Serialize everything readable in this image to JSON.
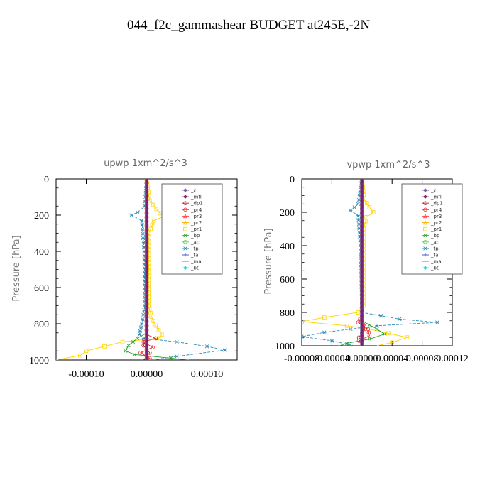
{
  "figure": {
    "title": "044_f2c_gammashear  BUDGET at245E,-2N"
  },
  "legend_entries": [
    {
      "name": "_cl",
      "color": "#7a5c99",
      "marker": "diamond"
    },
    {
      "name": "_mfl",
      "color": "#8b1a5a",
      "marker": "diamond"
    },
    {
      "name": "_dp1",
      "color": "#b22222",
      "marker": "circle"
    },
    {
      "name": "_pr4",
      "color": "#e8262e",
      "marker": "circle"
    },
    {
      "name": "_pr3",
      "color": "#ff4040",
      "marker": "triangle"
    },
    {
      "name": "_pr2",
      "color": "#ffb000",
      "marker": "triangle"
    },
    {
      "name": "_pr1",
      "color": "#ffd400",
      "marker": "square"
    },
    {
      "name": "_bp",
      "color": "#22a022",
      "marker": "x"
    },
    {
      "name": "_ac",
      "color": "#55cc55",
      "marker": "circle"
    },
    {
      "name": "_tp",
      "color": "#2a8ab8",
      "marker": "star"
    },
    {
      "name": "_ta",
      "color": "#3050c8",
      "marker": "plus"
    },
    {
      "name": "_ma",
      "color": "#3ab0e0",
      "marker": "dash"
    },
    {
      "name": "_bt",
      "color": "#00e5ee",
      "marker": "diamond"
    }
  ],
  "chart_data": [
    {
      "type": "line",
      "title": "upwp   1xm^2/s^3",
      "ylabel": "Pressure [hPa]",
      "xlim": [
        -0.00015,
        0.00015
      ],
      "ylim": [
        1000,
        0
      ],
      "xticks": [
        -0.0001,
        0,
        0.0001
      ],
      "xtick_labels": [
        "-0.00010",
        "0.00000",
        "0.00010"
      ],
      "yticks": [
        0,
        200,
        400,
        600,
        800,
        1000
      ],
      "ytick_labels": [
        "0",
        "200",
        "400",
        "600",
        "800",
        "1000"
      ],
      "legend_position": "top-right",
      "series": [
        {
          "name": "_pr1",
          "points": [
            [
              0,
              0
            ],
            [
              5e-06,
              120
            ],
            [
              2.2e-05,
              190
            ],
            [
              3e-05,
              205
            ],
            [
              1.2e-05,
              230
            ],
            [
              4e-06,
              300
            ],
            [
              3e-06,
              700
            ],
            [
              8e-06,
              760
            ],
            [
              1.5e-05,
              810
            ],
            [
              2.5e-05,
              860
            ],
            [
              2e-05,
              880
            ],
            [
              -4e-05,
              900
            ],
            [
              -0.0001,
              950
            ],
            [
              -0.00011,
              975
            ],
            [
              -0.00015,
              1000
            ]
          ]
        },
        {
          "name": "_tp",
          "points": [
            [
              0,
              0
            ],
            [
              -3e-06,
              150
            ],
            [
              -1.5e-05,
              185
            ],
            [
              -2.5e-05,
              200
            ],
            [
              -8e-06,
              230
            ],
            [
              -4e-06,
              400
            ],
            [
              -3e-06,
              700
            ],
            [
              -8e-06,
              800
            ],
            [
              -1.2e-05,
              860
            ],
            [
              -5e-06,
              880
            ],
            [
              5e-05,
              900
            ],
            [
              0.0001,
              925
            ],
            [
              0.00013,
              945
            ],
            [
              5e-05,
              980
            ],
            [
              1e-05,
              1000
            ]
          ]
        },
        {
          "name": "_bp",
          "points": [
            [
              0,
              0
            ],
            [
              0,
              850
            ],
            [
              -1.5e-05,
              880
            ],
            [
              -3e-05,
              920
            ],
            [
              -3.5e-05,
              950
            ],
            [
              -2e-05,
              970
            ],
            [
              4e-05,
              990
            ],
            [
              7e-05,
              1000
            ]
          ]
        },
        {
          "name": "_pr4",
          "points": [
            [
              0,
              0
            ],
            [
              0,
              860
            ],
            [
              1.5e-05,
              880
            ],
            [
              -5e-06,
              900
            ],
            [
              1e-05,
              930
            ],
            [
              -1e-05,
              960
            ],
            [
              5e-06,
              990
            ],
            [
              -8e-06,
              1000
            ]
          ]
        },
        {
          "name": "_dp1",
          "points": [
            [
              0,
              0
            ],
            [
              0,
              880
            ],
            [
              -5e-06,
              920
            ],
            [
              5e-06,
              960
            ],
            [
              -5e-06,
              1000
            ]
          ]
        },
        {
          "name": "_cl",
          "points": [
            [
              0,
              0
            ],
            [
              0,
              1000
            ]
          ]
        },
        {
          "name": "_mfl",
          "points": [
            [
              0,
              0
            ],
            [
              0,
              1000
            ]
          ]
        }
      ]
    },
    {
      "type": "line",
      "title": "vpwp   1xm^2/s^3",
      "ylabel": "Pressure [hPa]",
      "xlim": [
        -8e-05,
        0.00012
      ],
      "ylim": [
        1000,
        0
      ],
      "xticks": [
        -8e-05,
        -4e-05,
        0,
        4e-05,
        8e-05,
        0.00012
      ],
      "xtick_labels": [
        "-0.00008",
        "-0.00004",
        "0.00000",
        "0.00004",
        "0.00008",
        "0.00012"
      ],
      "yticks": [
        0,
        200,
        400,
        600,
        800,
        1000
      ],
      "ytick_labels": [
        "0",
        "200",
        "400",
        "600",
        "800",
        "1000"
      ],
      "legend_position": "top-right",
      "series": [
        {
          "name": "_pr1",
          "points": [
            [
              0,
              0
            ],
            [
              3e-06,
              120
            ],
            [
              1e-05,
              170
            ],
            [
              1.5e-05,
              200
            ],
            [
              6e-06,
              230
            ],
            [
              2e-06,
              300
            ],
            [
              2e-06,
              760
            ],
            [
              -5e-06,
              800
            ],
            [
              -5e-05,
              830
            ],
            [
              -8e-05,
              855
            ],
            [
              -2e-05,
              880
            ],
            [
              1e-05,
              900
            ],
            [
              6e-05,
              950
            ],
            [
              4e-05,
              980
            ],
            [
              2e-05,
              1000
            ]
          ]
        },
        {
          "name": "_tp",
          "points": [
            [
              0,
              0
            ],
            [
              -5e-06,
              150
            ],
            [
              -1.5e-05,
              190
            ],
            [
              -5e-06,
              220
            ],
            [
              -2e-06,
              400
            ],
            [
              0,
              800
            ],
            [
              5e-05,
              840
            ],
            [
              0.0001,
              860
            ],
            [
              2e-05,
              880
            ],
            [
              -5e-05,
              920
            ],
            [
              -8e-05,
              945
            ],
            [
              -4e-05,
              970
            ],
            [
              -2e-05,
              990
            ],
            [
              -1e-05,
              1000
            ]
          ]
        },
        {
          "name": "_bp",
          "points": [
            [
              0,
              0
            ],
            [
              0,
              850
            ],
            [
              2e-05,
              900
            ],
            [
              3e-05,
              930
            ],
            [
              1e-05,
              960
            ],
            [
              -2e-05,
              985
            ],
            [
              -3e-05,
              1000
            ]
          ]
        },
        {
          "name": "_pr4",
          "points": [
            [
              0,
              0
            ],
            [
              0,
              820
            ],
            [
              -5e-06,
              860
            ],
            [
              8e-06,
              900
            ],
            [
              1e-05,
              940
            ],
            [
              -4e-06,
              970
            ],
            [
              2e-06,
              1000
            ]
          ]
        },
        {
          "name": "_dp1",
          "points": [
            [
              0,
              0
            ],
            [
              0,
              850
            ],
            [
              4e-06,
              900
            ],
            [
              -4e-06,
              950
            ],
            [
              3e-06,
              1000
            ]
          ]
        },
        {
          "name": "_cl",
          "points": [
            [
              0,
              0
            ],
            [
              0,
              1000
            ]
          ]
        },
        {
          "name": "_mfl",
          "points": [
            [
              0,
              0
            ],
            [
              0,
              1000
            ]
          ]
        }
      ]
    }
  ]
}
